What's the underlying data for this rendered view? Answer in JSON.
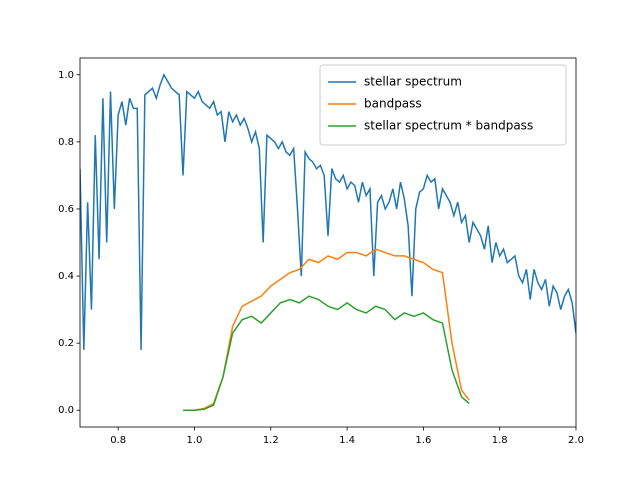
{
  "chart_data": {
    "type": "line",
    "xlim": [
      0.7,
      2.0
    ],
    "xticks": [
      0.8,
      {
        "value": 1,
        "label": "1.0"
      },
      1.2,
      1.4,
      1.6,
      1.8,
      {
        "value": 2,
        "label": "2.0"
      }
    ],
    "ylim": [
      -0.05,
      1.05
    ],
    "yticks": [
      {
        "value": 0,
        "label": "0.0"
      },
      0.2,
      0.4,
      0.6,
      0.8,
      {
        "value": 1,
        "label": "1.0"
      }
    ],
    "legend": "upper right",
    "series": [
      {
        "name": "stellar spectrum",
        "color": "#1f77b4",
        "x": [
          0.7,
          0.71,
          0.72,
          0.73,
          0.74,
          0.75,
          0.76,
          0.77,
          0.78,
          0.79,
          0.8,
          0.81,
          0.82,
          0.83,
          0.84,
          0.85,
          0.86,
          0.87,
          0.88,
          0.89,
          0.9,
          0.91,
          0.92,
          0.93,
          0.94,
          0.95,
          0.96,
          0.97,
          0.98,
          0.99,
          1.0,
          1.01,
          1.02,
          1.03,
          1.04,
          1.05,
          1.06,
          1.07,
          1.08,
          1.09,
          1.1,
          1.11,
          1.12,
          1.13,
          1.14,
          1.15,
          1.16,
          1.17,
          1.18,
          1.19,
          1.2,
          1.21,
          1.22,
          1.23,
          1.24,
          1.25,
          1.26,
          1.27,
          1.28,
          1.29,
          1.3,
          1.31,
          1.32,
          1.33,
          1.34,
          1.35,
          1.36,
          1.37,
          1.38,
          1.39,
          1.4,
          1.41,
          1.42,
          1.43,
          1.44,
          1.45,
          1.46,
          1.47,
          1.48,
          1.49,
          1.5,
          1.51,
          1.52,
          1.53,
          1.54,
          1.55,
          1.56,
          1.57,
          1.58,
          1.59,
          1.6,
          1.61,
          1.62,
          1.63,
          1.64,
          1.65,
          1.66,
          1.67,
          1.68,
          1.69,
          1.7,
          1.71,
          1.72,
          1.73,
          1.74,
          1.75,
          1.76,
          1.77,
          1.78,
          1.79,
          1.8,
          1.81,
          1.82,
          1.83,
          1.84,
          1.85,
          1.86,
          1.87,
          1.88,
          1.89,
          1.9,
          1.91,
          1.92,
          1.93,
          1.94,
          1.95,
          1.96,
          1.97,
          1.98,
          1.99,
          2.0
        ],
        "values": [
          0.72,
          0.18,
          0.62,
          0.3,
          0.82,
          0.45,
          0.93,
          0.5,
          0.95,
          0.6,
          0.88,
          0.92,
          0.85,
          0.93,
          0.9,
          0.9,
          0.18,
          0.94,
          0.95,
          0.96,
          0.93,
          0.97,
          1.0,
          0.98,
          0.96,
          0.95,
          0.94,
          0.7,
          0.95,
          0.94,
          0.93,
          0.95,
          0.92,
          0.91,
          0.9,
          0.92,
          0.88,
          0.89,
          0.8,
          0.89,
          0.86,
          0.88,
          0.85,
          0.87,
          0.84,
          0.8,
          0.83,
          0.78,
          0.5,
          0.82,
          0.81,
          0.8,
          0.78,
          0.8,
          0.77,
          0.76,
          0.78,
          0.6,
          0.4,
          0.77,
          0.75,
          0.74,
          0.72,
          0.73,
          0.7,
          0.52,
          0.72,
          0.69,
          0.68,
          0.7,
          0.66,
          0.68,
          0.67,
          0.62,
          0.68,
          0.64,
          0.66,
          0.4,
          0.62,
          0.64,
          0.6,
          0.62,
          0.66,
          0.6,
          0.68,
          0.63,
          0.55,
          0.34,
          0.6,
          0.65,
          0.66,
          0.7,
          0.68,
          0.69,
          0.6,
          0.66,
          0.64,
          0.62,
          0.58,
          0.62,
          0.56,
          0.58,
          0.5,
          0.56,
          0.54,
          0.52,
          0.48,
          0.55,
          0.44,
          0.5,
          0.46,
          0.48,
          0.44,
          0.45,
          0.46,
          0.4,
          0.38,
          0.42,
          0.33,
          0.42,
          0.38,
          0.36,
          0.39,
          0.31,
          0.37,
          0.35,
          0.3,
          0.34,
          0.36,
          0.32,
          0.23
        ]
      },
      {
        "name": "bandpass",
        "color": "#ff7f0e",
        "x": [
          0.97,
          1.0,
          1.025,
          1.05,
          1.075,
          1.1,
          1.125,
          1.15,
          1.175,
          1.2,
          1.225,
          1.25,
          1.275,
          1.3,
          1.325,
          1.35,
          1.375,
          1.4,
          1.425,
          1.45,
          1.475,
          1.5,
          1.525,
          1.55,
          1.575,
          1.6,
          1.625,
          1.65,
          1.675,
          1.7,
          1.72
        ],
        "values": [
          0,
          0,
          0.005,
          0.02,
          0.1,
          0.25,
          0.31,
          0.325,
          0.34,
          0.37,
          0.39,
          0.41,
          0.42,
          0.45,
          0.44,
          0.46,
          0.45,
          0.47,
          0.47,
          0.46,
          0.48,
          0.47,
          0.46,
          0.46,
          0.45,
          0.44,
          0.42,
          0.41,
          0.2,
          0.06,
          0.03
        ]
      },
      {
        "name": "stellar spectrum * bandpass",
        "color": "#2ca02c",
        "x": [
          0.97,
          1.0,
          1.025,
          1.05,
          1.075,
          1.1,
          1.125,
          1.15,
          1.175,
          1.2,
          1.225,
          1.25,
          1.275,
          1.3,
          1.325,
          1.35,
          1.375,
          1.4,
          1.425,
          1.45,
          1.475,
          1.5,
          1.525,
          1.55,
          1.575,
          1.6,
          1.625,
          1.65,
          1.675,
          1.7,
          1.72
        ],
        "values": [
          0,
          0,
          0.003,
          0.015,
          0.1,
          0.23,
          0.27,
          0.28,
          0.26,
          0.29,
          0.32,
          0.33,
          0.32,
          0.34,
          0.33,
          0.31,
          0.3,
          0.32,
          0.3,
          0.29,
          0.31,
          0.3,
          0.27,
          0.29,
          0.28,
          0.29,
          0.27,
          0.26,
          0.12,
          0.04,
          0.02
        ]
      }
    ]
  }
}
